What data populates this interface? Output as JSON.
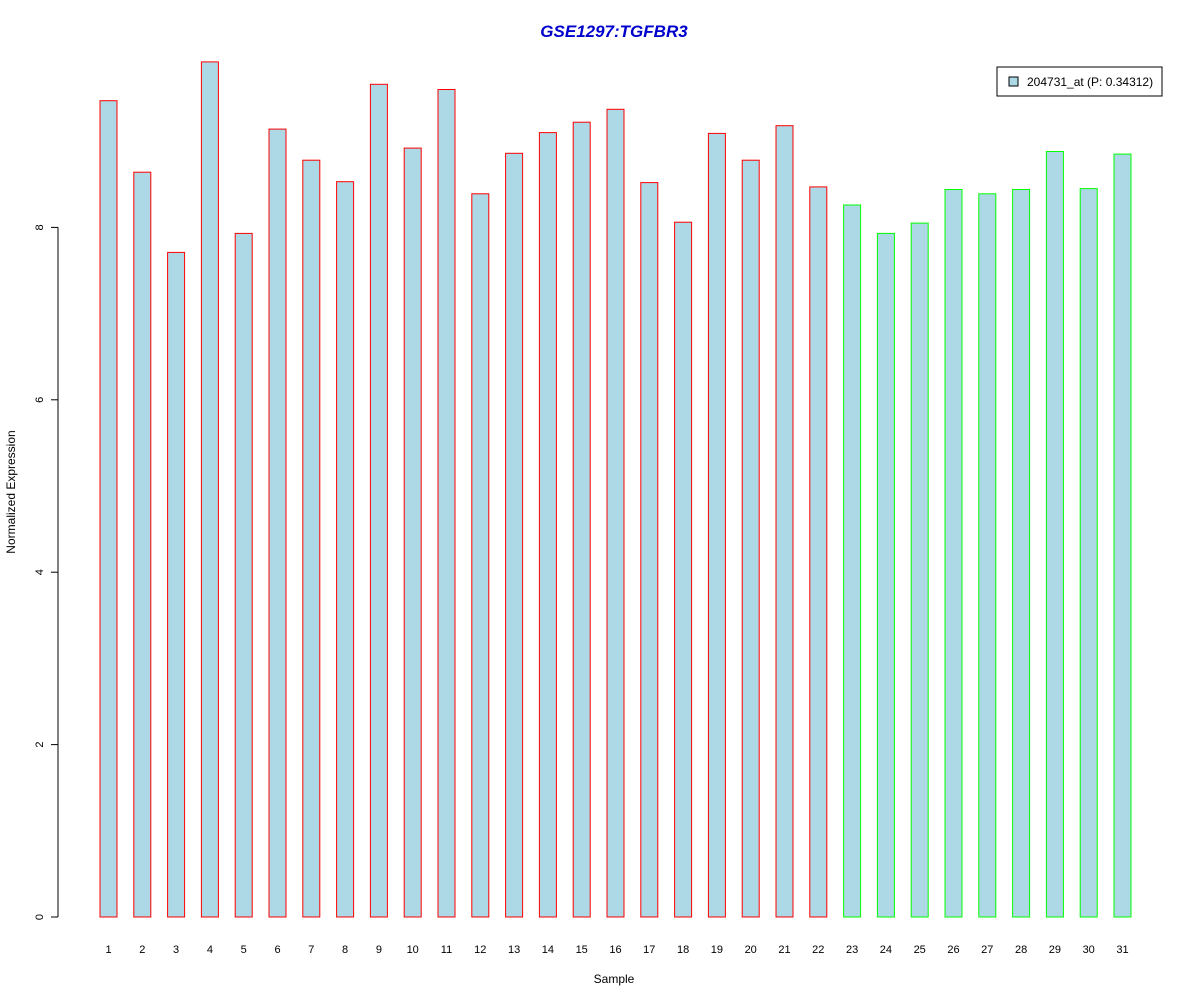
{
  "chart_data": {
    "type": "bar",
    "title": "GSE1297:TGFBR3",
    "xlabel": "Sample",
    "ylabel": "Normalized Expression",
    "ylim": [
      0,
      10
    ],
    "yticks": [
      0,
      2,
      4,
      6,
      8
    ],
    "grid": false,
    "legend_position": "top-right",
    "categories": [
      "1",
      "2",
      "3",
      "4",
      "5",
      "6",
      "7",
      "8",
      "9",
      "10",
      "11",
      "12",
      "13",
      "14",
      "15",
      "16",
      "17",
      "18",
      "19",
      "20",
      "21",
      "22",
      "23",
      "24",
      "25",
      "26",
      "27",
      "28",
      "29",
      "30",
      "31"
    ],
    "series": [
      {
        "name": "204731_at (P: 0.34312)",
        "values": [
          9.47,
          8.64,
          7.71,
          9.92,
          7.93,
          9.14,
          8.78,
          8.53,
          9.66,
          8.92,
          9.6,
          8.39,
          8.86,
          9.1,
          9.22,
          9.37,
          8.52,
          8.06,
          9.09,
          8.78,
          9.18,
          8.47,
          8.26,
          7.93,
          8.05,
          8.44,
          8.39,
          8.44,
          8.88,
          8.45,
          8.85
        ]
      }
    ],
    "group_sizes": [
      22,
      9
    ]
  },
  "colors": {
    "title": "#0000cd",
    "bar_fill": "#add8e6",
    "group_borders": [
      "#ff0000",
      "#00ff00"
    ],
    "axis": "#000000"
  }
}
